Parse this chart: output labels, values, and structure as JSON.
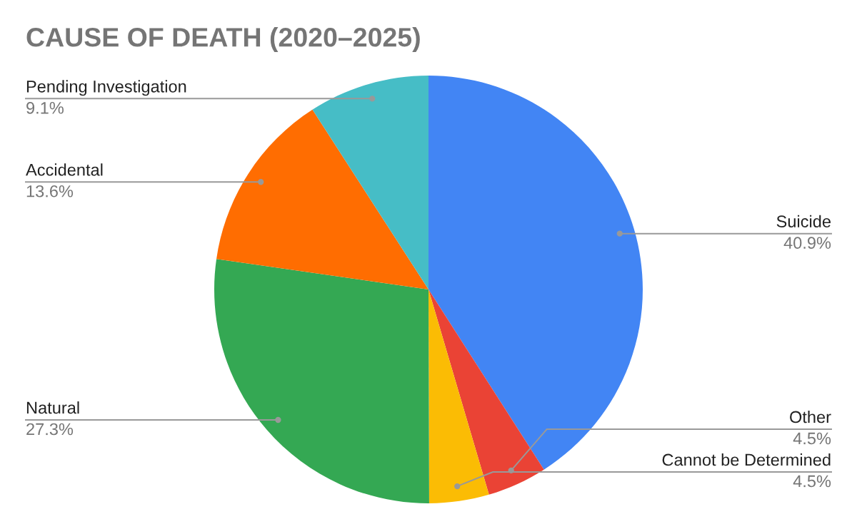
{
  "chart_data": {
    "type": "pie",
    "title": "CAUSE OF DEATH (2020–2025)",
    "categories": [
      "Suicide",
      "Other",
      "Cannot be Determined",
      "Natural",
      "Accidental",
      "Pending Investigation"
    ],
    "values": [
      40.9,
      4.5,
      4.5,
      27.3,
      13.6,
      9.1
    ],
    "colors": [
      "#4285f4",
      "#ea4335",
      "#fbbc04",
      "#34a853",
      "#ff6d01",
      "#46bdc6"
    ],
    "value_labels": [
      "40.9%",
      "4.5%",
      "4.5%",
      "27.3%",
      "13.6%",
      "9.1%"
    ]
  }
}
